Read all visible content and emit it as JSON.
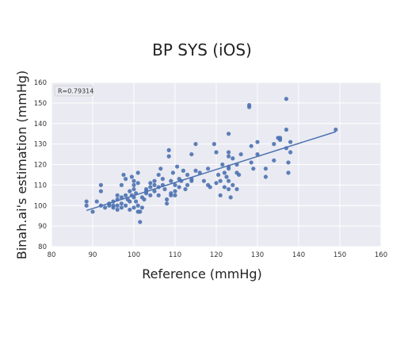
{
  "chart_data": {
    "type": "scatter",
    "title": "BP SYS (iOS)",
    "xlabel": "Reference (mmHg)",
    "ylabel": "Binah.ai's estimation (mmHg)",
    "xlim": [
      80,
      160
    ],
    "ylim": [
      80,
      160
    ],
    "xticks": [
      "80",
      "90",
      "100",
      "110",
      "120",
      "130",
      "140",
      "150",
      "160"
    ],
    "yticks": [
      "80",
      "90",
      "100",
      "110",
      "120",
      "130",
      "140",
      "150",
      "160"
    ],
    "grid": true,
    "annotation": "R=0.79314",
    "annotation_position": "top-left",
    "point_color": "#4c72b0",
    "background_color": "#eaeaf2",
    "points": [
      [
        88.5,
        100
      ],
      [
        88.5,
        102
      ],
      [
        90,
        97
      ],
      [
        91,
        102
      ],
      [
        92,
        110
      ],
      [
        92,
        107
      ],
      [
        92,
        100
      ],
      [
        93,
        99
      ],
      [
        94,
        100
      ],
      [
        94,
        101
      ],
      [
        95,
        100
      ],
      [
        95,
        102
      ],
      [
        95,
        99
      ],
      [
        96,
        103
      ],
      [
        96,
        98
      ],
      [
        96,
        100
      ],
      [
        96,
        105
      ],
      [
        97,
        101
      ],
      [
        97,
        104
      ],
      [
        97,
        99
      ],
      [
        97,
        110
      ],
      [
        97.5,
        115
      ],
      [
        98,
        113
      ],
      [
        98,
        105
      ],
      [
        98,
        100
      ],
      [
        98.5,
        103
      ],
      [
        99,
        107
      ],
      [
        99,
        102
      ],
      [
        99,
        98
      ],
      [
        99.5,
        105
      ],
      [
        99.5,
        114
      ],
      [
        100,
        104
      ],
      [
        100,
        110
      ],
      [
        100,
        99
      ],
      [
        100,
        108
      ],
      [
        100,
        112
      ],
      [
        100.5,
        102
      ],
      [
        100.5,
        106
      ],
      [
        101,
        100
      ],
      [
        101,
        97
      ],
      [
        101,
        111
      ],
      [
        101,
        116
      ],
      [
        101.5,
        92
      ],
      [
        101.5,
        97
      ],
      [
        102,
        99
      ],
      [
        102,
        104
      ],
      [
        102.5,
        103
      ],
      [
        103,
        108
      ],
      [
        103,
        107
      ],
      [
        103,
        106
      ],
      [
        104,
        109
      ],
      [
        104,
        105
      ],
      [
        104,
        111
      ],
      [
        105,
        112
      ],
      [
        105,
        110
      ],
      [
        105,
        107
      ],
      [
        106,
        115
      ],
      [
        106,
        109
      ],
      [
        106,
        105
      ],
      [
        106.5,
        118
      ],
      [
        107,
        113
      ],
      [
        107,
        110
      ],
      [
        107.5,
        108
      ],
      [
        108,
        101
      ],
      [
        108,
        103
      ],
      [
        108.5,
        127
      ],
      [
        108.5,
        124
      ],
      [
        109,
        112
      ],
      [
        109,
        106
      ],
      [
        109,
        105
      ],
      [
        109.5,
        116
      ],
      [
        110,
        110
      ],
      [
        110,
        107
      ],
      [
        110,
        105
      ],
      [
        110.5,
        119
      ],
      [
        111,
        113
      ],
      [
        111,
        109
      ],
      [
        111.5,
        112
      ],
      [
        112,
        117
      ],
      [
        112.5,
        108
      ],
      [
        113,
        110
      ],
      [
        113,
        115
      ],
      [
        114,
        125
      ],
      [
        114,
        113
      ],
      [
        114,
        112
      ],
      [
        115,
        130
      ],
      [
        115,
        117
      ],
      [
        116,
        116
      ],
      [
        117,
        112
      ],
      [
        118,
        118
      ],
      [
        118,
        110
      ],
      [
        118.5,
        109
      ],
      [
        119.5,
        130
      ],
      [
        120,
        126
      ],
      [
        120,
        111
      ],
      [
        120.5,
        115
      ],
      [
        121,
        105
      ],
      [
        121,
        112
      ],
      [
        121.5,
        120
      ],
      [
        122,
        116
      ],
      [
        122,
        109
      ],
      [
        122.5,
        114
      ],
      [
        123,
        112
      ],
      [
        123,
        118
      ],
      [
        123,
        124
      ],
      [
        123,
        126
      ],
      [
        123,
        119
      ],
      [
        123,
        135
      ],
      [
        123,
        108
      ],
      [
        123.5,
        104
      ],
      [
        124,
        123
      ],
      [
        124,
        110
      ],
      [
        125,
        120
      ],
      [
        125,
        108
      ],
      [
        125,
        116
      ],
      [
        125.5,
        115
      ],
      [
        126,
        125
      ],
      [
        128,
        148
      ],
      [
        128,
        149
      ],
      [
        128.5,
        129
      ],
      [
        128.5,
        121
      ],
      [
        129,
        118
      ],
      [
        130,
        131
      ],
      [
        130,
        125
      ],
      [
        132,
        118
      ],
      [
        132,
        114
      ],
      [
        134,
        122
      ],
      [
        134,
        130
      ],
      [
        135,
        133
      ],
      [
        135.5,
        132
      ],
      [
        135.5,
        133
      ],
      [
        137,
        152
      ],
      [
        137,
        137
      ],
      [
        137,
        128
      ],
      [
        137.5,
        121
      ],
      [
        137.5,
        116
      ],
      [
        138,
        131
      ],
      [
        138,
        126
      ],
      [
        149,
        137
      ]
    ],
    "regression": {
      "x": [
        88.5,
        149
      ],
      "y": [
        97.6,
        136
      ]
    }
  }
}
